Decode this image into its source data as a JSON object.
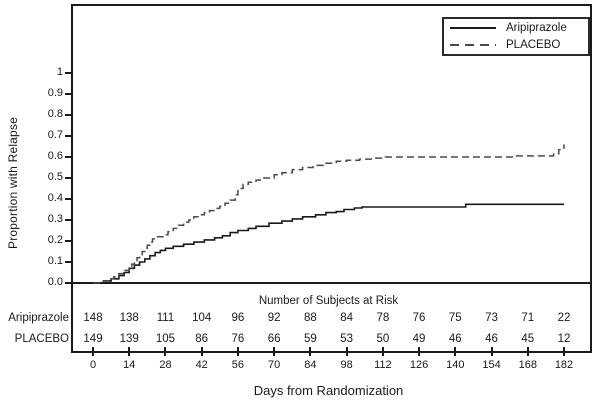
{
  "figure": {
    "y_axis": {
      "title": "Proportion with Relapse",
      "tick_labels": [
        "1",
        "0.9",
        "0.8",
        "0.7",
        "0.6",
        "0.5",
        "0.4",
        "0.3",
        "0.2",
        "0.1",
        "0.0"
      ]
    },
    "x_axis": {
      "title": "Days from Randomization",
      "tick_labels": [
        "0",
        "14",
        "28",
        "42",
        "56",
        "70",
        "84",
        "98",
        "112",
        "126",
        "140",
        "154",
        "168",
        "182"
      ]
    },
    "legend": {
      "entries": [
        {
          "label": "Aripiprazole",
          "style": "solid"
        },
        {
          "label": "PLACEBO",
          "style": "dashed"
        }
      ]
    },
    "risk_table": {
      "title": "Number of Subjects at Risk",
      "rows": [
        {
          "label": "Aripiprazole",
          "values": [
            "148",
            "138",
            "111",
            "104",
            "96",
            "92",
            "88",
            "84",
            "78",
            "76",
            "75",
            "73",
            "71",
            "22"
          ]
        },
        {
          "label": "PLACEBO",
          "values": [
            "149",
            "139",
            "105",
            "86",
            "76",
            "66",
            "59",
            "53",
            "50",
            "49",
            "46",
            "46",
            "45",
            "12"
          ]
        }
      ]
    },
    "colors": {
      "solid_line": "#1a1a1a",
      "dashed_line": "#4a4a4a",
      "text": "#1a1a1a",
      "background": "#ffffff"
    }
  },
  "chart_data": {
    "type": "line",
    "subtype": "kaplan-meier-step",
    "title": "",
    "xlabel": "Days from Randomization",
    "ylabel": "Proportion with Relapse",
    "xlim": [
      0,
      182
    ],
    "ylim": [
      0.0,
      1.0
    ],
    "x_ticks": [
      0,
      14,
      28,
      42,
      56,
      70,
      84,
      98,
      112,
      126,
      140,
      154,
      168,
      182
    ],
    "y_ticks": [
      0.0,
      0.1,
      0.2,
      0.3,
      0.4,
      0.5,
      0.6,
      0.7,
      0.8,
      0.9,
      1.0
    ],
    "grid": false,
    "legend_position": "top-right",
    "series": [
      {
        "name": "Aripiprazole",
        "style": "solid",
        "points": [
          [
            0,
            0
          ],
          [
            4,
            0.01
          ],
          [
            7,
            0.02
          ],
          [
            10,
            0.035
          ],
          [
            12,
            0.05
          ],
          [
            14,
            0.07
          ],
          [
            16,
            0.085
          ],
          [
            18,
            0.1
          ],
          [
            20,
            0.115
          ],
          [
            22,
            0.13
          ],
          [
            24,
            0.145
          ],
          [
            26,
            0.155
          ],
          [
            28,
            0.165
          ],
          [
            31,
            0.175
          ],
          [
            35,
            0.185
          ],
          [
            39,
            0.195
          ],
          [
            43,
            0.205
          ],
          [
            47,
            0.215
          ],
          [
            50,
            0.225
          ],
          [
            53,
            0.24
          ],
          [
            56,
            0.25
          ],
          [
            60,
            0.26
          ],
          [
            63,
            0.27
          ],
          [
            68,
            0.285
          ],
          [
            73,
            0.295
          ],
          [
            77,
            0.305
          ],
          [
            81,
            0.315
          ],
          [
            86,
            0.325
          ],
          [
            90,
            0.335
          ],
          [
            94,
            0.34
          ],
          [
            97,
            0.35
          ],
          [
            101,
            0.357
          ],
          [
            104,
            0.362
          ],
          [
            144,
            0.375
          ],
          [
            182,
            0.375
          ]
        ]
      },
      {
        "name": "PLACEBO",
        "style": "dashed",
        "points": [
          [
            0,
            0
          ],
          [
            4,
            0.01
          ],
          [
            6,
            0.02
          ],
          [
            8,
            0.03
          ],
          [
            10,
            0.045
          ],
          [
            12,
            0.06
          ],
          [
            14,
            0.075
          ],
          [
            15,
            0.09
          ],
          [
            16,
            0.105
          ],
          [
            17,
            0.12
          ],
          [
            18,
            0.135
          ],
          [
            19,
            0.15
          ],
          [
            20,
            0.165
          ],
          [
            21,
            0.18
          ],
          [
            22,
            0.195
          ],
          [
            23,
            0.21
          ],
          [
            24,
            0.22
          ],
          [
            27,
            0.23
          ],
          [
            29,
            0.245
          ],
          [
            31,
            0.26
          ],
          [
            33,
            0.275
          ],
          [
            35,
            0.29
          ],
          [
            37,
            0.3
          ],
          [
            39,
            0.315
          ],
          [
            41,
            0.325
          ],
          [
            43,
            0.335
          ],
          [
            45,
            0.345
          ],
          [
            47,
            0.355
          ],
          [
            49,
            0.365
          ],
          [
            51,
            0.38
          ],
          [
            53,
            0.395
          ],
          [
            55,
            0.42
          ],
          [
            56,
            0.45
          ],
          [
            58,
            0.47
          ],
          [
            60,
            0.48
          ],
          [
            63,
            0.49
          ],
          [
            66,
            0.5
          ],
          [
            70,
            0.515
          ],
          [
            73,
            0.525
          ],
          [
            77,
            0.54
          ],
          [
            81,
            0.55
          ],
          [
            85,
            0.56
          ],
          [
            89,
            0.57
          ],
          [
            94,
            0.58
          ],
          [
            98,
            0.585
          ],
          [
            103,
            0.59
          ],
          [
            108,
            0.595
          ],
          [
            113,
            0.6
          ],
          [
            160,
            0.6
          ],
          [
            163,
            0.605
          ],
          [
            178,
            0.615
          ],
          [
            180,
            0.635
          ],
          [
            182,
            0.66
          ]
        ]
      }
    ],
    "risk_table": {
      "title": "Number of Subjects at Risk",
      "days": [
        0,
        14,
        28,
        42,
        56,
        70,
        84,
        98,
        112,
        126,
        140,
        154,
        168,
        182
      ],
      "Aripiprazole": [
        148,
        138,
        111,
        104,
        96,
        92,
        88,
        84,
        78,
        76,
        75,
        73,
        71,
        22
      ],
      "PLACEBO": [
        149,
        139,
        105,
        86,
        76,
        66,
        59,
        53,
        50,
        49,
        46,
        46,
        45,
        12
      ]
    }
  }
}
